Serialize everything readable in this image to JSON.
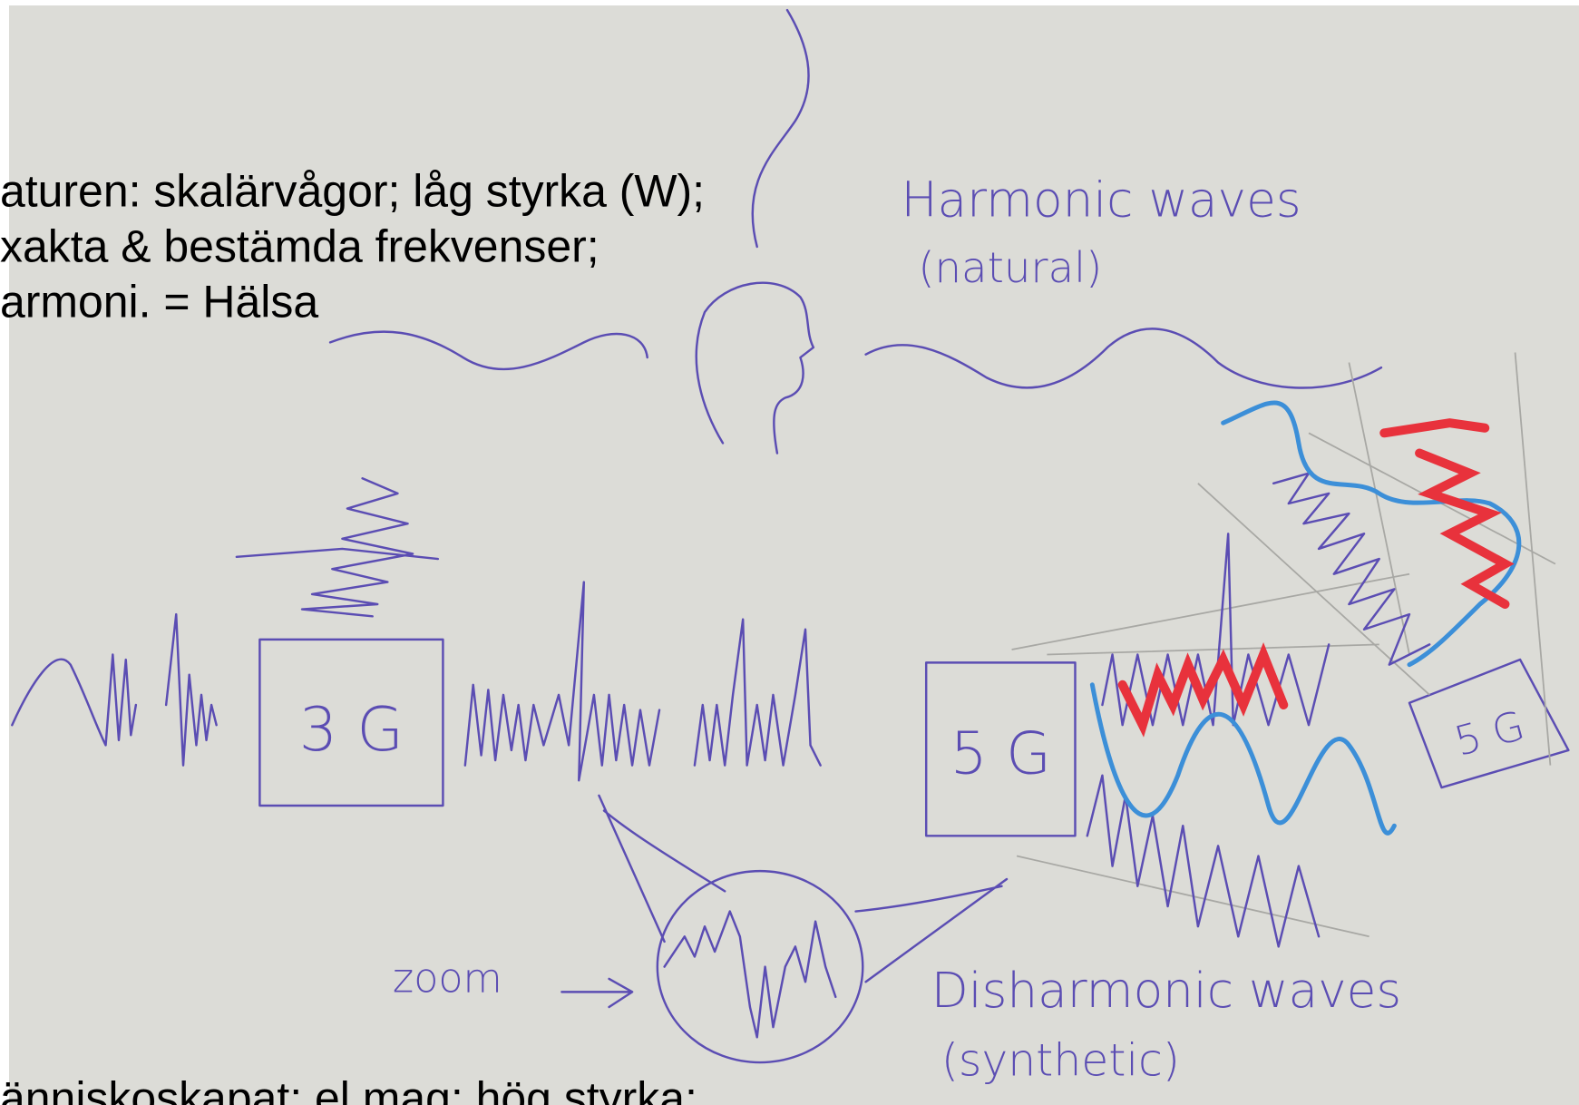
{
  "typed_text": {
    "lines": [
      "aturen: skalärvågor; låg styrka (W);",
      "xakta & bestämda frekvenser;",
      "armoni. = Hälsa"
    ],
    "bottom_line": "änniskoskapat; el mag; hög styrka;"
  },
  "handwriting": {
    "harmonic_title": "Harmonic waves",
    "harmonic_note": "(natural)",
    "box_3g": "3 G",
    "box_5g": "5 G",
    "box_5g_small": "5 G",
    "zoom": "zoom",
    "disharmonic_title": "Disharmonic waves",
    "disharmonic_note": "(synthetic)"
  }
}
